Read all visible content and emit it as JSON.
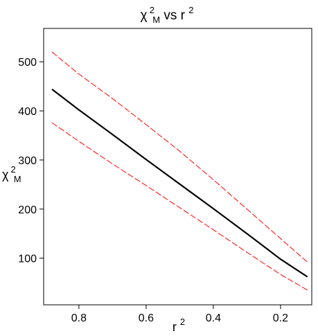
{
  "chart_data": {
    "type": "line",
    "title": {
      "symbol": "χ",
      "superscript": "2",
      "subscript": "M",
      "rest": " vs r",
      "rest_superscript": "2"
    },
    "xlabel": {
      "base": "r",
      "superscript": "2"
    },
    "ylabel": {
      "symbol": "χ",
      "superscript": "2",
      "subscript": "M"
    },
    "x_reversed": true,
    "xlim": [
      0.905,
      0.107
    ],
    "ylim": [
      5,
      568
    ],
    "x_ticks": [
      0.8,
      0.6,
      0.4,
      0.2
    ],
    "x_tick_labels": [
      "0.8",
      "0.6",
      "0.4",
      "0.2"
    ],
    "y_ticks": [
      100,
      200,
      300,
      400,
      500
    ],
    "y_tick_labels": [
      "100",
      "200",
      "300",
      "400",
      "500"
    ],
    "grid": false,
    "series": [
      {
        "style": "solid",
        "color": "#000000",
        "x": [
          0.88,
          0.8,
          0.7,
          0.6,
          0.5,
          0.4,
          0.3,
          0.2,
          0.12
        ],
        "y": [
          444,
          402,
          352,
          301,
          251,
          201,
          150,
          98,
          62
        ]
      },
      {
        "style": "dashed",
        "color": "#ff0000",
        "x": [
          0.88,
          0.8,
          0.7,
          0.6,
          0.5,
          0.4,
          0.3,
          0.2,
          0.12
        ],
        "y": [
          520,
          475,
          425,
          372,
          318,
          260,
          200,
          140,
          92
        ]
      },
      {
        "style": "dashed",
        "color": "#ff0000",
        "x": [
          0.88,
          0.8,
          0.7,
          0.6,
          0.5,
          0.4,
          0.3,
          0.2,
          0.12
        ],
        "y": [
          376,
          338,
          292,
          248,
          203,
          158,
          112,
          67,
          35
        ]
      }
    ]
  }
}
